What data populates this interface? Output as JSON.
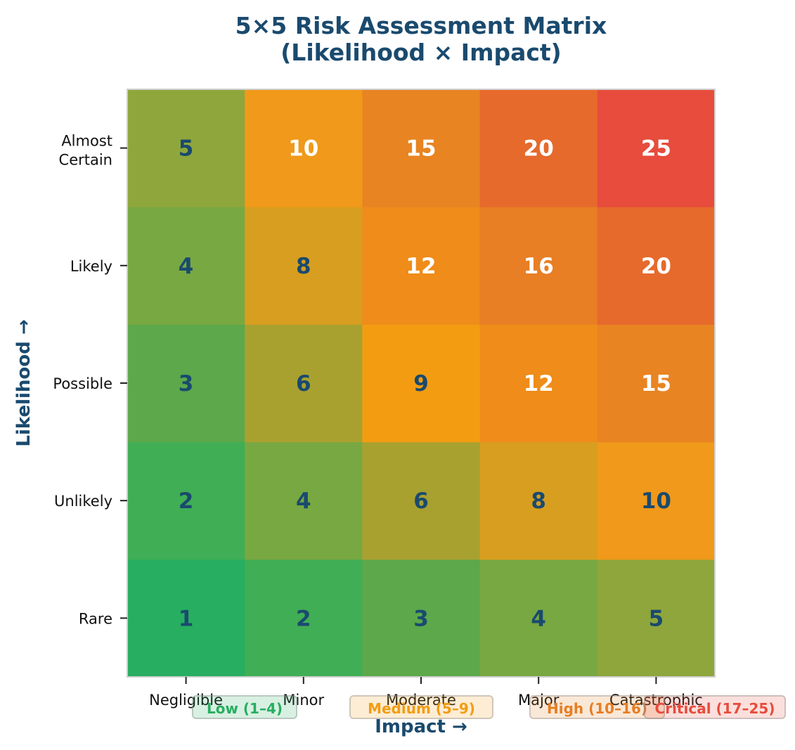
{
  "chart_data": {
    "type": "heatmap",
    "title": "5×5 Risk Assessment Matrix\n(Likelihood × Impact)",
    "title_lines": [
      "5×5 Risk Assessment Matrix",
      "(Likelihood × Impact)"
    ],
    "xlabel": "Impact →",
    "ylabel": "Likelihood →",
    "x_categories": [
      "Negligible",
      "Minor",
      "Moderate",
      "Major",
      "Catastrophic"
    ],
    "y_categories": [
      "Rare",
      "Unlikely",
      "Possible",
      "Likely",
      "Almost Certain"
    ],
    "values_by_likelihood": [
      [
        1,
        2,
        3,
        4,
        5
      ],
      [
        2,
        4,
        6,
        8,
        10
      ],
      [
        3,
        6,
        9,
        12,
        15
      ],
      [
        4,
        8,
        12,
        16,
        20
      ],
      [
        5,
        10,
        15,
        20,
        25
      ]
    ],
    "cell_colors_by_likelihood": [
      [
        "#27ae60",
        "#40ae55",
        "#5ca84b",
        "#78a842",
        "#8ea63b"
      ],
      [
        "#40ae55",
        "#78a842",
        "#a8a130",
        "#d89e20",
        "#f0991a"
      ],
      [
        "#5ca84b",
        "#a8a130",
        "#f39c12",
        "#ef8c1a",
        "#e88422"
      ],
      [
        "#78a842",
        "#d89e20",
        "#ef8c1a",
        "#e87f25",
        "#e66a2c"
      ],
      [
        "#8ea63b",
        "#f0991a",
        "#e88422",
        "#e66a2c",
        "#e74c3c"
      ]
    ],
    "legend": [
      {
        "label": "Low (1–4)",
        "color": "#27ae60"
      },
      {
        "label": "Medium (5–9)",
        "color": "#f39c12"
      },
      {
        "label": "High (10–16)",
        "color": "#e67e22"
      },
      {
        "label": "Critical (17–25)",
        "color": "#e74c3c"
      }
    ],
    "legend_placement": "bottom",
    "grid": false
  }
}
